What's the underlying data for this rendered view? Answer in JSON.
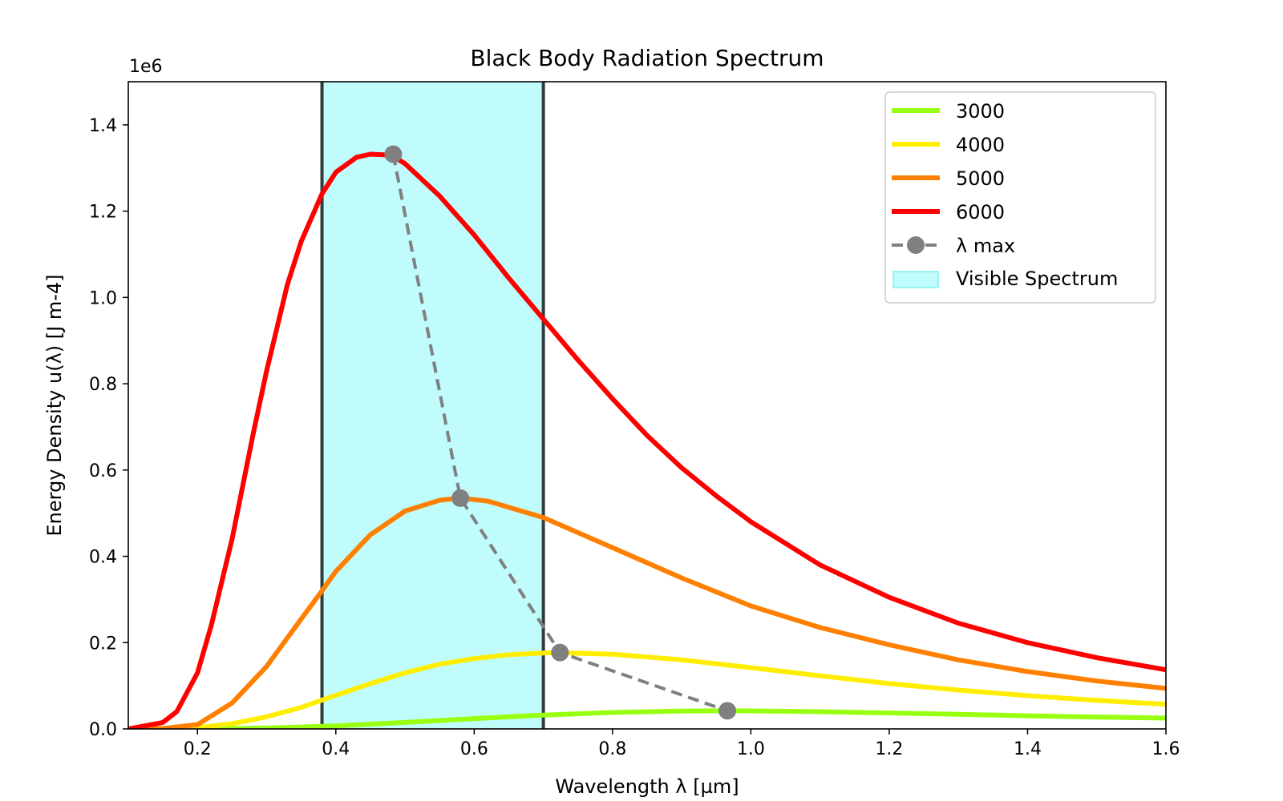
{
  "chart_data": {
    "type": "line",
    "title": "Black Body Radiation Spectrum",
    "xlabel": "Wavelength λ [µm]",
    "ylabel": "Energy Density u(λ) [J m-4]",
    "y_offset_label": "1e6",
    "xlim": [
      0.1,
      1.6
    ],
    "ylim": [
      0,
      1500000
    ],
    "x_ticks": [
      0.2,
      0.4,
      0.6,
      0.8,
      1.0,
      1.2,
      1.4,
      1.6
    ],
    "x_tick_labels": [
      "0.2",
      "0.4",
      "0.6",
      "0.8",
      "1.0",
      "1.2",
      "1.4",
      "1.6"
    ],
    "y_ticks": [
      0,
      200000,
      400000,
      600000,
      800000,
      1000000,
      1200000,
      1400000
    ],
    "y_tick_labels": [
      "0.0",
      "0.2",
      "0.4",
      "0.6",
      "0.8",
      "1.0",
      "1.2",
      "1.4"
    ],
    "grid": false,
    "legend_position": "top-right",
    "visible_band": {
      "name": "Visible Spectrum",
      "x_range": [
        0.38,
        0.7
      ],
      "color": "#c0fcfc",
      "edge_color": "#2f3d3d"
    },
    "series": [
      {
        "name": "3000",
        "color": "#99ff11",
        "x": [
          0.1,
          0.2,
          0.3,
          0.4,
          0.5,
          0.6,
          0.7,
          0.8,
          0.9,
          0.966,
          1.0,
          1.1,
          1.2,
          1.3,
          1.4,
          1.5,
          1.6
        ],
        "y": [
          0,
          100,
          2000,
          7000,
          15000,
          24000,
          32000,
          38000,
          41500,
          42000,
          41800,
          40000,
          37000,
          34000,
          30500,
          27500,
          25000
        ]
      },
      {
        "name": "4000",
        "color": "#ffee00",
        "x": [
          0.1,
          0.2,
          0.25,
          0.3,
          0.35,
          0.4,
          0.45,
          0.5,
          0.55,
          0.6,
          0.65,
          0.7,
          0.72,
          0.8,
          0.9,
          1.0,
          1.1,
          1.2,
          1.3,
          1.4,
          1.5,
          1.6
        ],
        "y": [
          0,
          3000,
          12000,
          28000,
          50000,
          78000,
          105000,
          130000,
          150000,
          163000,
          172000,
          176000,
          177000,
          173000,
          160000,
          142000,
          123000,
          105000,
          90000,
          77000,
          66000,
          57000
        ]
      },
      {
        "name": "5000",
        "color": "#ff8000",
        "x": [
          0.1,
          0.15,
          0.2,
          0.25,
          0.3,
          0.35,
          0.38,
          0.4,
          0.45,
          0.5,
          0.55,
          0.58,
          0.62,
          0.7,
          0.8,
          0.9,
          1.0,
          1.1,
          1.2,
          1.3,
          1.4,
          1.5,
          1.6
        ],
        "y": [
          0,
          1000,
          10000,
          60000,
          145000,
          255000,
          320000,
          365000,
          450000,
          505000,
          530000,
          535000,
          528000,
          490000,
          420000,
          350000,
          285000,
          235000,
          195000,
          160000,
          133000,
          111000,
          94000
        ]
      },
      {
        "name": "6000",
        "color": "#ff0000",
        "x": [
          0.1,
          0.15,
          0.17,
          0.2,
          0.22,
          0.25,
          0.28,
          0.3,
          0.33,
          0.35,
          0.38,
          0.4,
          0.43,
          0.45,
          0.48,
          0.5,
          0.55,
          0.6,
          0.65,
          0.7,
          0.75,
          0.8,
          0.85,
          0.9,
          0.95,
          1.0,
          1.1,
          1.2,
          1.3,
          1.4,
          1.5,
          1.6
        ],
        "y": [
          0,
          15000,
          40000,
          130000,
          240000,
          440000,
          680000,
          830000,
          1030000,
          1130000,
          1240000,
          1290000,
          1325000,
          1332000,
          1330000,
          1310000,
          1235000,
          1145000,
          1045000,
          950000,
          855000,
          765000,
          680000,
          605000,
          540000,
          480000,
          380000,
          305000,
          245000,
          200000,
          165000,
          137000
        ]
      },
      {
        "name": "λ max",
        "color": "#808080",
        "style": "dashed",
        "marker": "circle",
        "x": [
          0.483,
          0.58,
          0.724,
          0.966
        ],
        "y": [
          1332000,
          535000,
          177000,
          42000
        ]
      }
    ]
  }
}
